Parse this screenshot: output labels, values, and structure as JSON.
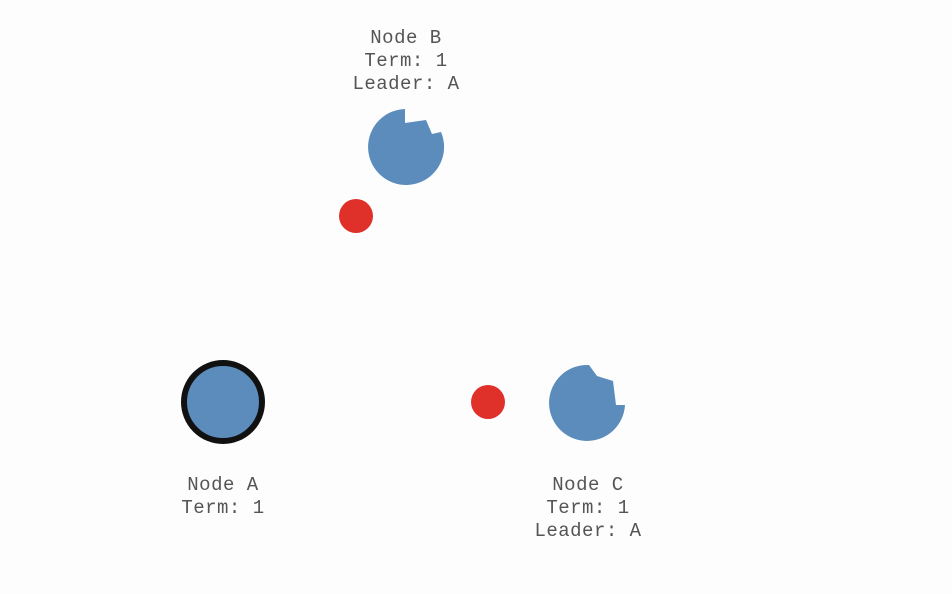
{
  "nodes": {
    "a": {
      "name": "Node A",
      "term": "Term: 1",
      "leader": "",
      "role": "leader"
    },
    "b": {
      "name": "Node B",
      "term": "Term: 1",
      "leader": "Leader: A",
      "role": "follower"
    },
    "c": {
      "name": "Node C",
      "term": "Term: 1",
      "leader": "Leader: A",
      "role": "follower"
    }
  },
  "messages": [
    {
      "id": "msg-to-b",
      "from": "A",
      "to": "B"
    },
    {
      "id": "msg-to-c",
      "from": "A",
      "to": "C"
    }
  ],
  "colors": {
    "node_fill": "#5b8cbc",
    "leader_stroke": "#111111",
    "message_fill": "#e0302a",
    "background": "#fdfdfd",
    "label_text": "#555555"
  }
}
